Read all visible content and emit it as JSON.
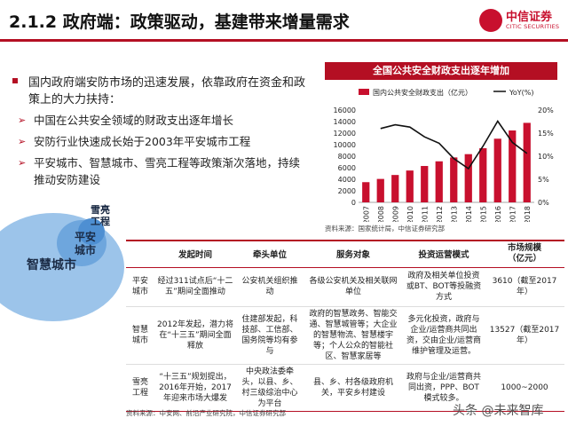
{
  "header": {
    "title": "2.1.2 政府端：政策驱动，基建带来增量需求",
    "logo_cn": "中信证券",
    "logo_en": "CITIC SECURITIES",
    "logo_color": "#c8102e"
  },
  "intro": {
    "text": "国内政府端安防市场的迅速发展，依靠政府在资金和政策上的大力扶持：",
    "points": [
      "中国在公共安全领域的财政支出逐年增长",
      "安防行业快速成长始于2003年平安城市工程",
      "平安城市、智慧城市、雪亮工程等政策渐次落地，持续推动安防建设"
    ]
  },
  "venn": {
    "outer": "智慧城市",
    "middle": "平安\n城市",
    "inner": "雪亮\n工程"
  },
  "chart": {
    "header": "全国公共安全财政支出逐年增加",
    "source": "资料来源：国家统计局，中信证券研究部"
  },
  "chart_data": {
    "type": "bar",
    "categories": [
      "2007",
      "2008",
      "2009",
      "2010",
      "2011",
      "2012",
      "2013",
      "2014",
      "2015",
      "2016",
      "2017",
      "2018"
    ],
    "series": [
      {
        "name": "国内公共安全财政支出（亿元）",
        "type": "bar",
        "axis": "left",
        "values": [
          3500,
          4060,
          4744,
          5518,
          6304,
          7112,
          7787,
          8357,
          9380,
          11032,
          12461,
          13781
        ]
      },
      {
        "name": "YoY(%)",
        "type": "line",
        "axis": "right",
        "values": [
          null,
          16,
          16.8,
          16.3,
          14.2,
          12.8,
          9.5,
          7.3,
          12.2,
          17.6,
          13,
          10.6
        ]
      }
    ],
    "ylim": [
      0,
      16000
    ],
    "yticks": [
      0,
      2000,
      4000,
      6000,
      8000,
      10000,
      12000,
      14000,
      16000
    ],
    "y2lim": [
      0,
      20
    ],
    "y2ticks": [
      "0%",
      "5%",
      "10%",
      "15%",
      "20%"
    ],
    "bar_color": "#c8102e",
    "line_color": "#111111",
    "legend": "top"
  },
  "table": {
    "headers": [
      "",
      "发起时间",
      "牵头单位",
      "服务对象",
      "投资运营模式",
      "市场规模\n（亿元）"
    ],
    "rows": [
      [
        "平安\n城市",
        "经过311试点后“十二五”期间全面推动",
        "公安机关组织推动",
        "各级公安机关及相关联网单位",
        "政府及相关单位投资或BT、BOT等投融资方式",
        "3610（截至2017年）"
      ],
      [
        "智慧\n城市",
        "2012年发起，潜力将在“十三五”期间全面释放",
        "住建部发起，科技部、工信部、国务院等均有参与",
        "政府的智慧政务、智能交通、智慧城管等；大企业的智慧物流、智慧楼宇等；个人公众的智能社区、智慧家居等",
        "多元化投资，政府与企业/运营商共同出资，交由企业/运营商维护管理及运营。",
        "13527（截至2017年）"
      ],
      [
        "雪亮\n工程",
        "“十三五”规划提出，2016年开始，2017年迎来市场大爆发",
        "中央政法委牵头，以县、乡、村三级综治中心为平台",
        "县、乡、村各级政府机关，平安乡村建设",
        "政府与企业/运营商共同出资，PPP、BOT模式较多。",
        "1000~2000"
      ]
    ],
    "source": "资料来源：中安网、前沿产业研究院，中信证券研究部"
  },
  "watermark": "头条 @未来智库"
}
